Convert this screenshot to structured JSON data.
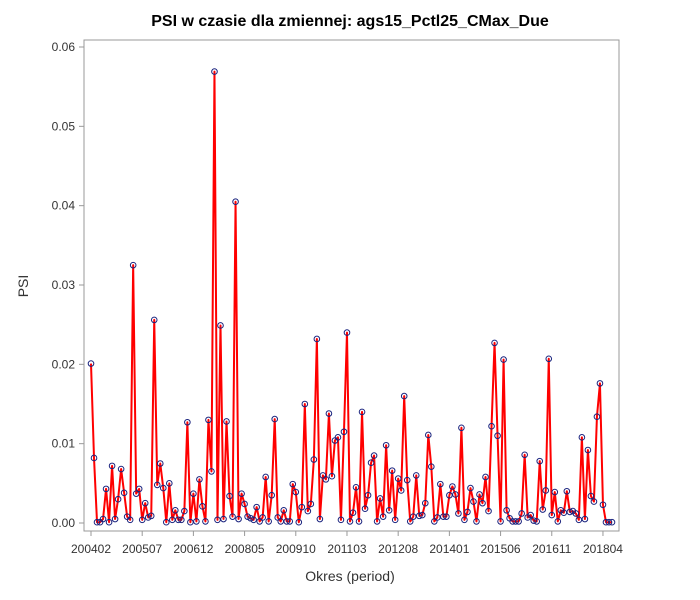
{
  "chart_data": {
    "type": "line",
    "title": "PSI w czasie dla zmiennej: ags15_Pctl25_CMax_Due",
    "xlabel": "Okres (period)",
    "ylabel": "PSI",
    "ylim": [
      0,
      0.06
    ],
    "yticks": [
      "0.00",
      "0.01",
      "0.02",
      "0.03",
      "0.04",
      "0.05",
      "0.06"
    ],
    "xticks": [
      {
        "label": "200402",
        "index": 0
      },
      {
        "label": "200507",
        "index": 17
      },
      {
        "label": "200612",
        "index": 34
      },
      {
        "label": "200805",
        "index": 51
      },
      {
        "label": "200910",
        "index": 68
      },
      {
        "label": "201103",
        "index": 85
      },
      {
        "label": "201208",
        "index": 102
      },
      {
        "label": "201401",
        "index": 119
      },
      {
        "label": "201506",
        "index": 136
      },
      {
        "label": "201611",
        "index": 153
      },
      {
        "label": "201804",
        "index": 170
      }
    ],
    "grid": false,
    "legend": "none",
    "colors": {
      "line": "#FF0000",
      "marker": "#1A237E",
      "frame": "#999999"
    },
    "series": [
      {
        "values": [
          0.0201,
          0.0082,
          0.0001,
          0.0001,
          0.0005,
          0.0043,
          0.0001,
          0.0072,
          0.0005,
          0.003,
          0.0068,
          0.0038,
          0.0008,
          0.0004,
          0.0325,
          0.0037,
          0.0043,
          0.0004,
          0.0025,
          0.0007,
          0.0009,
          0.0256,
          0.0048,
          0.0075,
          0.0044,
          0.0001,
          0.005,
          0.0004,
          0.0016,
          0.0004,
          0.0004,
          0.0015,
          0.0127,
          0.0001,
          0.0037,
          0.0002,
          0.0055,
          0.0021,
          0.0002,
          0.013,
          0.0065,
          0.0569,
          0.0004,
          0.0249,
          0.0005,
          0.0128,
          0.0034,
          0.0008,
          0.0405,
          0.0005,
          0.0037,
          0.0024,
          0.0008,
          0.0006,
          0.0004,
          0.002,
          0.0002,
          0.0007,
          0.0058,
          0.0002,
          0.0035,
          0.0131,
          0.0007,
          0.0002,
          0.0016,
          0.0002,
          0.0002,
          0.0049,
          0.0039,
          0.0001,
          0.002,
          0.015,
          0.0015,
          0.0024,
          0.008,
          0.0232,
          0.0005,
          0.006,
          0.0055,
          0.0138,
          0.0059,
          0.0104,
          0.0108,
          0.0004,
          0.0115,
          0.024,
          0.0002,
          0.0013,
          0.0045,
          0.0002,
          0.014,
          0.0018,
          0.0035,
          0.0076,
          0.0085,
          0.0002,
          0.0031,
          0.0008,
          0.0098,
          0.0016,
          0.0066,
          0.0004,
          0.0056,
          0.0041,
          0.016,
          0.0054,
          0.0002,
          0.0008,
          0.006,
          0.0009,
          0.001,
          0.0025,
          0.0111,
          0.0071,
          0.0002,
          0.0007,
          0.0049,
          0.0008,
          0.0008,
          0.0035,
          0.0046,
          0.0036,
          0.0012,
          0.012,
          0.0004,
          0.0014,
          0.0044,
          0.0027,
          0.0002,
          0.0036,
          0.0025,
          0.0058,
          0.0015,
          0.0122,
          0.0227,
          0.011,
          0.0002,
          0.0206,
          0.0016,
          0.0006,
          0.0002,
          0.0002,
          0.0002,
          0.0012,
          0.0086,
          0.0007,
          0.001,
          0.0003,
          0.0002,
          0.0078,
          0.0017,
          0.0041,
          0.0207,
          0.001,
          0.0039,
          0.0002,
          0.0016,
          0.0013,
          0.004,
          0.0014,
          0.0015,
          0.0012,
          0.0004,
          0.0108,
          0.0005,
          0.0092,
          0.0034,
          0.0027,
          0.0134,
          0.0176,
          0.0023,
          0.0001,
          0.0001,
          0.0001
        ]
      }
    ]
  }
}
